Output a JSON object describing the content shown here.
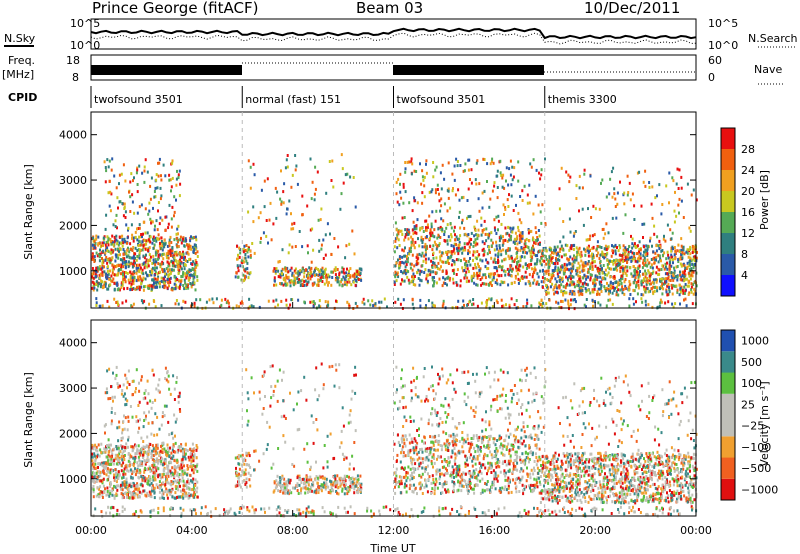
{
  "header": {
    "station": "Prince George (fitACF)",
    "beam": "Beam 03",
    "date": "10/Dec/2011"
  },
  "left_labels": {
    "nsky": "N.Sky",
    "freq": "Freq.",
    "freq_unit": "[MHz]",
    "cpid": "CPID"
  },
  "right_labels": {
    "nsearch": "N.Search",
    "nave": "Nave"
  },
  "noise_axis": {
    "left_ticks": [
      "10^5",
      "10^0"
    ],
    "right_ticks": [
      "10^5",
      "10^0"
    ]
  },
  "freq_axis": {
    "left_ticks": [
      "18",
      "8"
    ],
    "right_ticks": [
      "60",
      "0"
    ]
  },
  "cpid_segments": [
    {
      "label": "twofsound 3501",
      "start_hour": 0,
      "end_hour": 6
    },
    {
      "label": "normal (fast) 151",
      "start_hour": 6,
      "end_hour": 12
    },
    {
      "label": "twofsound 3501",
      "start_hour": 12,
      "end_hour": 18
    },
    {
      "label": "themis 3300",
      "start_hour": 18,
      "end_hour": 24
    }
  ],
  "colors": {
    "power_scale": [
      "#1010ff",
      "#2a5aa8",
      "#2f7f7f",
      "#55aa55",
      "#c8c820",
      "#f0a020",
      "#f06010",
      "#e81010"
    ],
    "velocity_scale": [
      "#e01010",
      "#f06020",
      "#f0a030",
      "#c0c0b8",
      "#c0c0b8",
      "#5cc040",
      "#3a8a8a",
      "#2050b0"
    ]
  },
  "chart_data": [
    {
      "type": "heatmap",
      "title": "Power",
      "xlabel": "",
      "ylabel": "Slant Range [km]",
      "xlim": [
        0,
        24
      ],
      "ylim": [
        180,
        4500
      ],
      "x_ticks": [],
      "y_ticks": [
        "1000",
        "2000",
        "3000",
        "4000"
      ],
      "colorbar_label": "Power [dB]",
      "colorbar_ticks": [
        "4",
        "8",
        "12",
        "16",
        "20",
        "24",
        "28"
      ]
    },
    {
      "type": "heatmap",
      "title": "Velocity",
      "xlabel": "Time UT",
      "ylabel": "Slant Range [km]",
      "xlim": [
        0,
        24
      ],
      "ylim": [
        180,
        4500
      ],
      "x_ticks": [
        "00:00",
        "04:00",
        "08:00",
        "12:00",
        "16:00",
        "20:00",
        "00:00"
      ],
      "y_ticks": [
        "1000",
        "2000",
        "3000",
        "4000"
      ],
      "colorbar_label": "Velocity [m s⁻¹]",
      "colorbar_ticks": [
        "1000",
        "500",
        "100",
        "25",
        "−25",
        "−100",
        "−500",
        "−1000"
      ]
    }
  ]
}
